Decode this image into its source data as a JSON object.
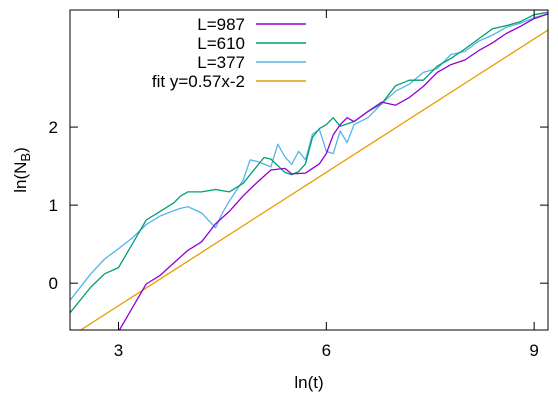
{
  "chart_data": {
    "type": "line",
    "title": "",
    "xlabel": "ln(t)",
    "ylabel": "ln(N_B)",
    "xlim": [
      2.3,
      9.2
    ],
    "ylim": [
      -0.6,
      3.5
    ],
    "x_ticks": [
      3,
      6,
      9
    ],
    "y_ticks": [
      0,
      1,
      2
    ],
    "grid": false,
    "legend_position": "top-left",
    "series": [
      {
        "name": "L=987",
        "color": "#9400d3",
        "points": [
          [
            2.3,
            -0.6
          ],
          [
            3.0,
            -0.62
          ],
          [
            3.4,
            -0.01
          ],
          [
            3.6,
            0.1
          ],
          [
            3.8,
            0.26
          ],
          [
            4.0,
            0.42
          ],
          [
            4.2,
            0.53
          ],
          [
            4.4,
            0.76
          ],
          [
            4.6,
            0.92
          ],
          [
            4.8,
            1.12
          ],
          [
            5.0,
            1.29
          ],
          [
            5.2,
            1.45
          ],
          [
            5.4,
            1.47
          ],
          [
            5.5,
            1.4
          ],
          [
            5.7,
            1.41
          ],
          [
            5.9,
            1.53
          ],
          [
            6.0,
            1.66
          ],
          [
            6.1,
            1.9
          ],
          [
            6.2,
            2.03
          ],
          [
            6.3,
            2.12
          ],
          [
            6.4,
            2.07
          ],
          [
            6.6,
            2.2
          ],
          [
            6.8,
            2.32
          ],
          [
            7.0,
            2.28
          ],
          [
            7.2,
            2.38
          ],
          [
            7.4,
            2.52
          ],
          [
            7.6,
            2.7
          ],
          [
            7.8,
            2.8
          ],
          [
            8.0,
            2.86
          ],
          [
            8.2,
            2.98
          ],
          [
            8.4,
            3.08
          ],
          [
            8.6,
            3.2
          ],
          [
            8.8,
            3.29
          ],
          [
            9.0,
            3.39
          ],
          [
            9.2,
            3.45
          ]
        ]
      },
      {
        "name": "L=610",
        "color": "#009e73",
        "points": [
          [
            2.3,
            -0.38
          ],
          [
            2.6,
            -0.05
          ],
          [
            2.8,
            0.12
          ],
          [
            3.0,
            0.2
          ],
          [
            3.2,
            0.5
          ],
          [
            3.4,
            0.81
          ],
          [
            3.6,
            0.92
          ],
          [
            3.8,
            1.03
          ],
          [
            3.9,
            1.12
          ],
          [
            4.0,
            1.17
          ],
          [
            4.2,
            1.17
          ],
          [
            4.4,
            1.2
          ],
          [
            4.6,
            1.17
          ],
          [
            4.8,
            1.28
          ],
          [
            5.0,
            1.5
          ],
          [
            5.1,
            1.61
          ],
          [
            5.2,
            1.59
          ],
          [
            5.4,
            1.42
          ],
          [
            5.5,
            1.39
          ],
          [
            5.6,
            1.43
          ],
          [
            5.7,
            1.53
          ],
          [
            5.8,
            1.87
          ],
          [
            5.9,
            1.98
          ],
          [
            6.0,
            2.03
          ],
          [
            6.1,
            2.12
          ],
          [
            6.2,
            2.01
          ],
          [
            6.4,
            2.07
          ],
          [
            6.6,
            2.2
          ],
          [
            6.8,
            2.3
          ],
          [
            7.0,
            2.53
          ],
          [
            7.2,
            2.6
          ],
          [
            7.4,
            2.6
          ],
          [
            7.6,
            2.78
          ],
          [
            7.8,
            2.88
          ],
          [
            8.0,
            3.0
          ],
          [
            8.2,
            3.13
          ],
          [
            8.4,
            3.26
          ],
          [
            8.6,
            3.3
          ],
          [
            8.8,
            3.35
          ],
          [
            9.0,
            3.44
          ],
          [
            9.2,
            3.47
          ]
        ]
      },
      {
        "name": "L=377",
        "color": "#56b4e9",
        "points": [
          [
            2.3,
            -0.22
          ],
          [
            2.6,
            0.12
          ],
          [
            2.8,
            0.31
          ],
          [
            3.0,
            0.44
          ],
          [
            3.2,
            0.58
          ],
          [
            3.4,
            0.75
          ],
          [
            3.6,
            0.86
          ],
          [
            3.8,
            0.93
          ],
          [
            3.9,
            0.96
          ],
          [
            4.0,
            0.98
          ],
          [
            4.2,
            0.9
          ],
          [
            4.4,
            0.71
          ],
          [
            4.5,
            0.9
          ],
          [
            4.6,
            1.05
          ],
          [
            4.8,
            1.32
          ],
          [
            4.9,
            1.58
          ],
          [
            5.0,
            1.56
          ],
          [
            5.2,
            1.49
          ],
          [
            5.3,
            1.78
          ],
          [
            5.4,
            1.62
          ],
          [
            5.5,
            1.52
          ],
          [
            5.6,
            1.69
          ],
          [
            5.7,
            1.58
          ],
          [
            5.8,
            1.91
          ],
          [
            5.9,
            1.97
          ],
          [
            6.0,
            1.69
          ],
          [
            6.1,
            1.66
          ],
          [
            6.2,
            1.95
          ],
          [
            6.3,
            1.8
          ],
          [
            6.4,
            2.03
          ],
          [
            6.6,
            2.12
          ],
          [
            6.8,
            2.3
          ],
          [
            7.0,
            2.46
          ],
          [
            7.2,
            2.55
          ],
          [
            7.4,
            2.7
          ],
          [
            7.6,
            2.75
          ],
          [
            7.8,
            2.93
          ],
          [
            8.0,
            2.97
          ],
          [
            8.2,
            3.1
          ],
          [
            8.4,
            3.18
          ],
          [
            8.6,
            3.28
          ],
          [
            8.8,
            3.33
          ],
          [
            9.0,
            3.4
          ],
          [
            9.2,
            3.45
          ]
        ]
      },
      {
        "name": "fit y=0.57x-2",
        "color": "#e69f00",
        "fit": {
          "slope": 0.57,
          "intercept": -2
        },
        "points": [
          [
            2.3,
            -0.689
          ],
          [
            9.2,
            3.244
          ]
        ]
      }
    ]
  }
}
